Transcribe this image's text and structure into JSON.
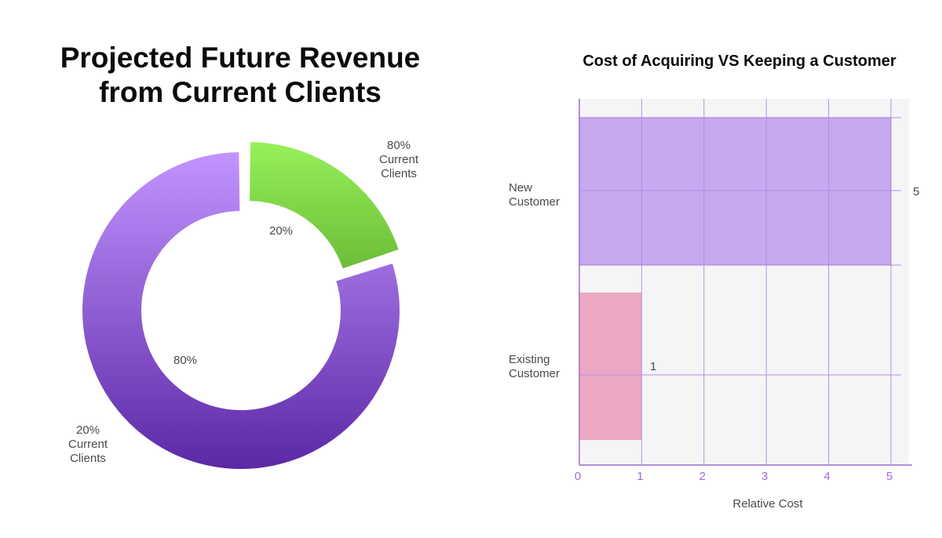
{
  "chart_data": [
    {
      "type": "pie",
      "variant": "donut",
      "title_lines": [
        "Projected Future Revenue",
        "from Current Clients"
      ],
      "slices": [
        {
          "label_lines": [
            "80%",
            "Current",
            "Clients"
          ],
          "value": 20,
          "inner_label": "20%",
          "color": "#86e04a",
          "exploded": true
        },
        {
          "label_lines": [
            "20%",
            "Current",
            "Clients"
          ],
          "value": 80,
          "inner_label": "80%",
          "color": "#8d5ad2",
          "exploded": false
        }
      ]
    },
    {
      "type": "bar",
      "orientation": "horizontal",
      "title": "Cost of Acquiring VS Keeping a Customer",
      "categories": [
        [
          "New",
          "Customer"
        ],
        [
          "Existing",
          "Customer"
        ]
      ],
      "values": [
        5,
        1
      ],
      "data_labels": [
        "5",
        "1"
      ],
      "colors": [
        "#c6a8ee",
        "#eba8c3"
      ],
      "xlabel": "Relative Cost",
      "xticks": [
        "0",
        "1",
        "2",
        "3",
        "4",
        "5"
      ],
      "xlim": [
        0,
        5
      ],
      "grid": true
    }
  ]
}
